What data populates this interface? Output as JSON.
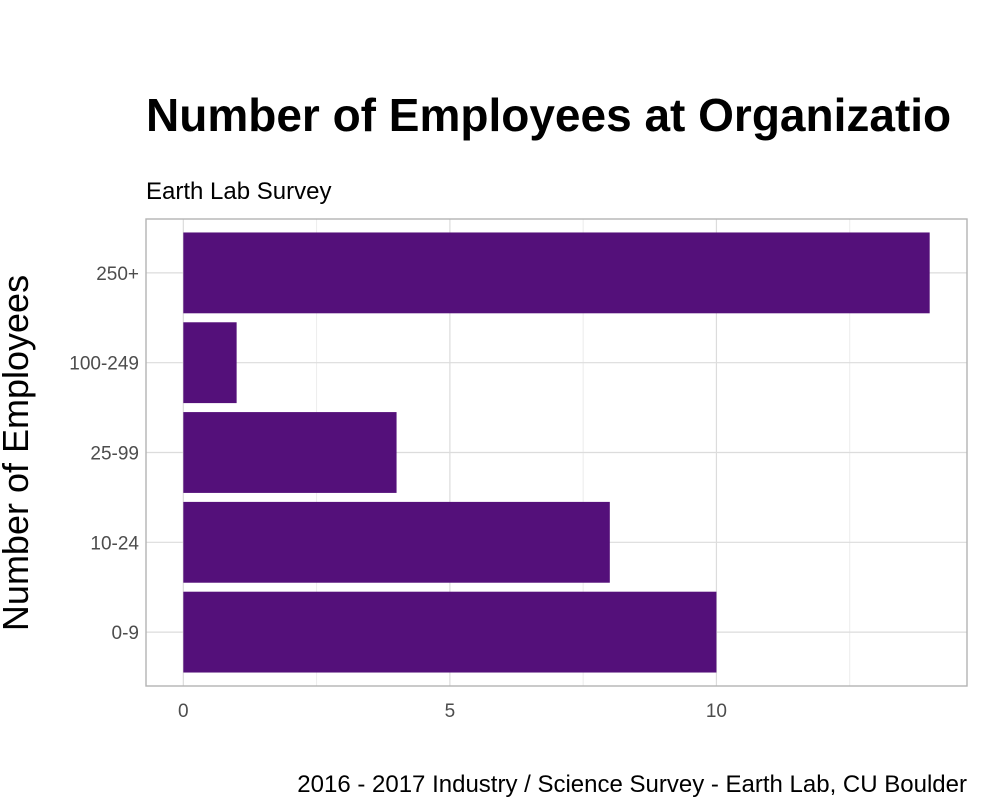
{
  "chart_data": {
    "type": "bar",
    "orientation": "horizontal",
    "title": "Number of Employees at Organizatio",
    "subtitle": "Earth Lab Survey",
    "ylabel": "Number of Employees",
    "xlabel": "",
    "caption": "2016 - 2017 Industry / Science Survey - Earth Lab, CU Boulder",
    "categories": [
      "0-9",
      "10-24",
      "25-99",
      "100-249",
      "250+"
    ],
    "values": [
      10,
      8,
      4,
      1,
      14
    ],
    "xlim": [
      -0.7,
      14.7
    ],
    "x_ticks": [
      0,
      5,
      10
    ],
    "x_tick_labels": [
      "0",
      "5",
      "10"
    ],
    "grid": true,
    "legend": "none",
    "bar_color": "#54107a"
  }
}
